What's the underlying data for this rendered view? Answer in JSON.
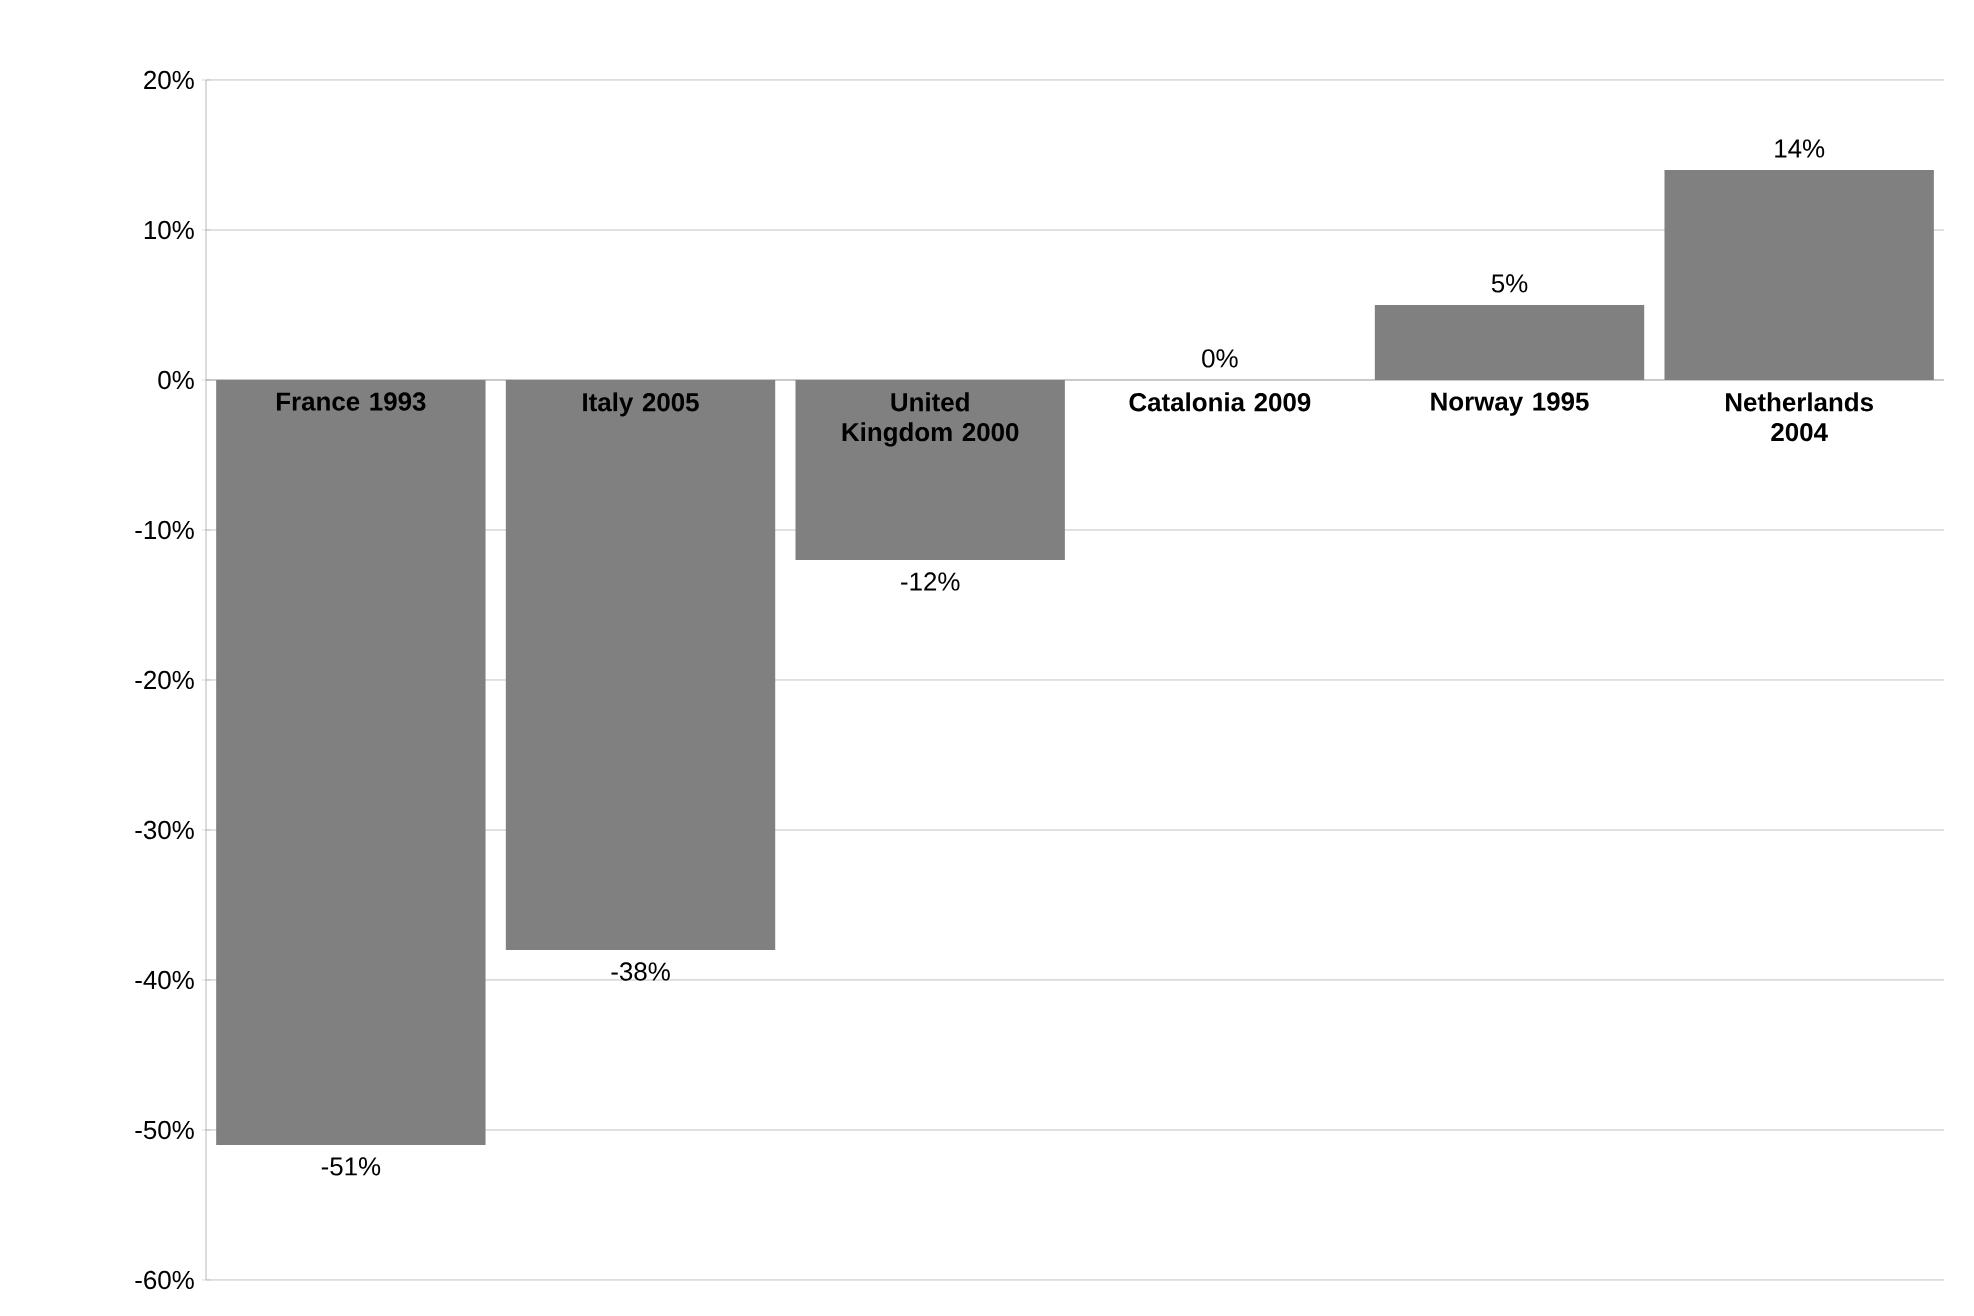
{
  "chart_data": {
    "type": "bar",
    "categories": [
      "France 1993",
      "Italy 2005",
      "United Kingdom 2000",
      "Catalonia 2009",
      "Norway 1995",
      "Netherlands 2004"
    ],
    "values": [
      -51,
      -38,
      -12,
      0,
      5,
      14
    ],
    "value_labels": [
      "-51%",
      "-38%",
      "-12%",
      "0%",
      "5%",
      "14%"
    ],
    "color": "#808080",
    "ylim": [
      -60,
      20
    ],
    "yticks": [
      {
        "value": -60,
        "label": "-60%"
      },
      {
        "value": -50,
        "label": "-50%"
      },
      {
        "value": -40,
        "label": "-40%"
      },
      {
        "value": -30,
        "label": "-30%"
      },
      {
        "value": -20,
        "label": "-20%"
      },
      {
        "value": -10,
        "label": "-10%"
      },
      {
        "value": 0,
        "label": "0%"
      },
      {
        "value": 10,
        "label": "10%"
      },
      {
        "value": 20,
        "label": "20%"
      }
    ],
    "grid": "y"
  }
}
